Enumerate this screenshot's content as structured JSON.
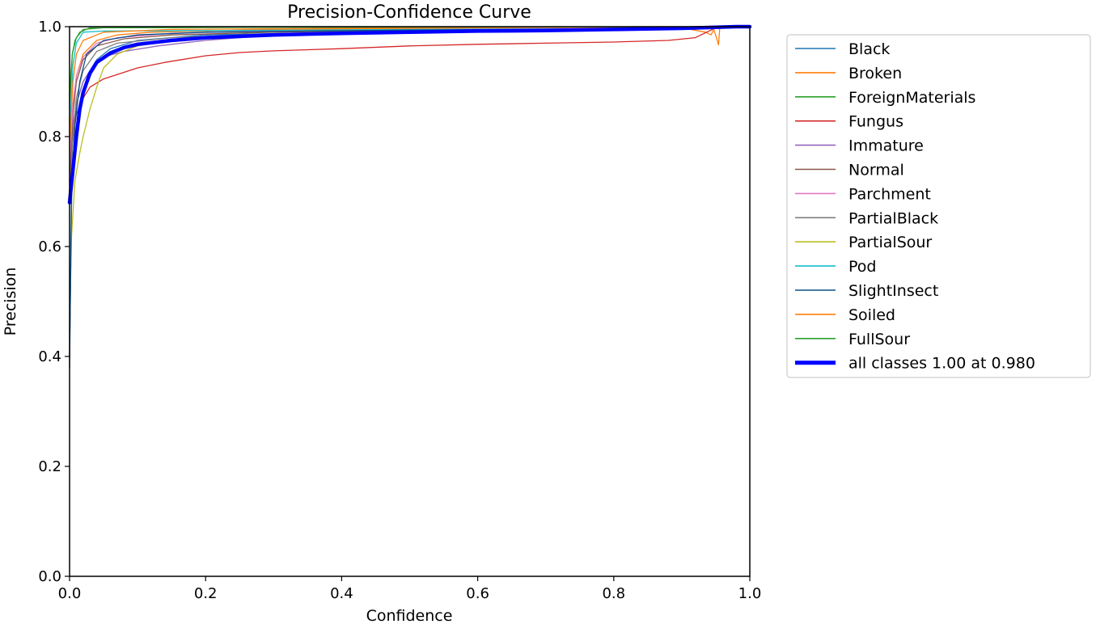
{
  "chart_data": {
    "type": "line",
    "title": "Precision-Confidence Curve",
    "xlabel": "Confidence",
    "ylabel": "Precision",
    "xlim": [
      0,
      1
    ],
    "ylim": [
      0,
      1
    ],
    "xticks": [
      "0.0",
      "0.2",
      "0.4",
      "0.6",
      "0.8",
      "1.0"
    ],
    "yticks": [
      "0.0",
      "0.2",
      "0.4",
      "0.6",
      "0.8",
      "1.0"
    ],
    "grid": false,
    "legend_position": "outside-right",
    "series": [
      {
        "name": "Black",
        "color": "#1f77b4",
        "width": 1.3,
        "points": [
          [
            0,
            0.4
          ],
          [
            0.004,
            0.78
          ],
          [
            0.01,
            0.86
          ],
          [
            0.02,
            0.9
          ],
          [
            0.04,
            0.94
          ],
          [
            0.06,
            0.96
          ],
          [
            0.1,
            0.975
          ],
          [
            0.2,
            0.985
          ],
          [
            0.4,
            0.99
          ],
          [
            0.6,
            0.993
          ],
          [
            0.8,
            0.995
          ],
          [
            0.9,
            0.997
          ],
          [
            1.0,
            1.0
          ]
        ]
      },
      {
        "name": "Broken",
        "color": "#ff7f0e",
        "width": 1.3,
        "points": [
          [
            0,
            0.72
          ],
          [
            0.005,
            0.85
          ],
          [
            0.01,
            0.91
          ],
          [
            0.02,
            0.95
          ],
          [
            0.04,
            0.975
          ],
          [
            0.07,
            0.985
          ],
          [
            0.12,
            0.99
          ],
          [
            0.3,
            0.995
          ],
          [
            0.6,
            0.997
          ],
          [
            0.9,
            0.998
          ],
          [
            0.935,
            0.99
          ],
          [
            0.943,
            0.985
          ],
          [
            0.947,
            0.995
          ],
          [
            0.951,
            0.98
          ],
          [
            0.954,
            0.967
          ],
          [
            0.956,
            1.0
          ],
          [
            1.0,
            1.0
          ]
        ]
      },
      {
        "name": "ForeignMaterials",
        "color": "#2ca02c",
        "width": 1.3,
        "points": [
          [
            0,
            0.88
          ],
          [
            0.004,
            0.95
          ],
          [
            0.01,
            0.98
          ],
          [
            0.02,
            0.995
          ],
          [
            0.05,
            0.998
          ],
          [
            0.3,
            0.999
          ],
          [
            0.6,
            0.999
          ],
          [
            1.0,
            1.0
          ]
        ]
      },
      {
        "name": "Fungus",
        "color": "#d62728",
        "width": 1.3,
        "points": [
          [
            0,
            0.7
          ],
          [
            0.005,
            0.8
          ],
          [
            0.01,
            0.84
          ],
          [
            0.02,
            0.87
          ],
          [
            0.03,
            0.89
          ],
          [
            0.05,
            0.905
          ],
          [
            0.07,
            0.913
          ],
          [
            0.1,
            0.925
          ],
          [
            0.14,
            0.935
          ],
          [
            0.2,
            0.947
          ],
          [
            0.25,
            0.953
          ],
          [
            0.3,
            0.956
          ],
          [
            0.4,
            0.96
          ],
          [
            0.5,
            0.965
          ],
          [
            0.6,
            0.968
          ],
          [
            0.7,
            0.97
          ],
          [
            0.8,
            0.972
          ],
          [
            0.88,
            0.975
          ],
          [
            0.92,
            0.98
          ],
          [
            0.945,
            0.995
          ],
          [
            0.95,
            1.0
          ],
          [
            1.0,
            1.0
          ]
        ]
      },
      {
        "name": "Immature",
        "color": "#9467bd",
        "width": 1.3,
        "points": [
          [
            0,
            0.72
          ],
          [
            0.005,
            0.82
          ],
          [
            0.01,
            0.86
          ],
          [
            0.02,
            0.9
          ],
          [
            0.03,
            0.92
          ],
          [
            0.05,
            0.945
          ],
          [
            0.08,
            0.955
          ],
          [
            0.13,
            0.965
          ],
          [
            0.2,
            0.975
          ],
          [
            0.3,
            0.985
          ],
          [
            0.5,
            0.99
          ],
          [
            0.8,
            0.995
          ],
          [
            1.0,
            1.0
          ]
        ]
      },
      {
        "name": "Normal",
        "color": "#8c564b",
        "width": 1.3,
        "points": [
          [
            0,
            0.7
          ],
          [
            0.005,
            0.84
          ],
          [
            0.01,
            0.9
          ],
          [
            0.02,
            0.94
          ],
          [
            0.04,
            0.965
          ],
          [
            0.08,
            0.978
          ],
          [
            0.15,
            0.985
          ],
          [
            0.3,
            0.99
          ],
          [
            0.6,
            0.995
          ],
          [
            1.0,
            1.0
          ]
        ]
      },
      {
        "name": "Parchment",
        "color": "#e377c2",
        "width": 1.3,
        "points": [
          [
            0,
            0.75
          ],
          [
            0.005,
            0.86
          ],
          [
            0.01,
            0.91
          ],
          [
            0.02,
            0.945
          ],
          [
            0.04,
            0.97
          ],
          [
            0.07,
            0.98
          ],
          [
            0.15,
            0.988
          ],
          [
            0.3,
            0.993
          ],
          [
            0.7,
            0.997
          ],
          [
            1.0,
            1.0
          ]
        ]
      },
      {
        "name": "PartialBlack",
        "color": "#7f7f7f",
        "width": 1.3,
        "points": [
          [
            0,
            0.68
          ],
          [
            0.005,
            0.8
          ],
          [
            0.01,
            0.87
          ],
          [
            0.02,
            0.92
          ],
          [
            0.04,
            0.955
          ],
          [
            0.07,
            0.97
          ],
          [
            0.15,
            0.98
          ],
          [
            0.3,
            0.987
          ],
          [
            0.6,
            0.993
          ],
          [
            1.0,
            1.0
          ]
        ]
      },
      {
        "name": "PartialSour",
        "color": "#bcbd22",
        "width": 1.3,
        "points": [
          [
            0,
            0.45
          ],
          [
            0.003,
            0.62
          ],
          [
            0.008,
            0.72
          ],
          [
            0.015,
            0.77
          ],
          [
            0.02,
            0.8
          ],
          [
            0.03,
            0.85
          ],
          [
            0.04,
            0.89
          ],
          [
            0.05,
            0.925
          ],
          [
            0.07,
            0.95
          ],
          [
            0.1,
            0.965
          ],
          [
            0.15,
            0.975
          ],
          [
            0.25,
            0.983
          ],
          [
            0.5,
            0.99
          ],
          [
            0.8,
            0.995
          ],
          [
            1.0,
            1.0
          ]
        ]
      },
      {
        "name": "Pod",
        "color": "#17becf",
        "width": 1.3,
        "points": [
          [
            0,
            0.8
          ],
          [
            0.005,
            0.93
          ],
          [
            0.01,
            0.97
          ],
          [
            0.02,
            0.99
          ],
          [
            0.05,
            0.992
          ],
          [
            0.2,
            0.993
          ],
          [
            0.5,
            0.995
          ],
          [
            0.9,
            0.997
          ],
          [
            1.0,
            1.0
          ]
        ]
      },
      {
        "name": "SlightInsect",
        "color": "#0b4f8a",
        "width": 1.3,
        "points": [
          [
            0,
            0.38
          ],
          [
            0.003,
            0.7
          ],
          [
            0.008,
            0.82
          ],
          [
            0.015,
            0.9
          ],
          [
            0.025,
            0.95
          ],
          [
            0.05,
            0.975
          ],
          [
            0.1,
            0.985
          ],
          [
            0.2,
            0.99
          ],
          [
            0.5,
            0.994
          ],
          [
            0.9,
            0.997
          ],
          [
            1.0,
            1.0
          ]
        ]
      },
      {
        "name": "Soiled",
        "color": "#ff7f0e",
        "width": 1.3,
        "points": [
          [
            0,
            0.78
          ],
          [
            0.005,
            0.9
          ],
          [
            0.01,
            0.95
          ],
          [
            0.02,
            0.975
          ],
          [
            0.05,
            0.99
          ],
          [
            0.15,
            0.995
          ],
          [
            0.5,
            0.998
          ],
          [
            1.0,
            1.0
          ]
        ]
      },
      {
        "name": "FullSour",
        "color": "#2ca02c",
        "width": 1.3,
        "points": [
          [
            0,
            0.85
          ],
          [
            0.004,
            0.95
          ],
          [
            0.008,
            0.975
          ],
          [
            0.015,
            0.99
          ],
          [
            0.03,
            0.998
          ],
          [
            0.3,
            0.999
          ],
          [
            1.0,
            1.0
          ]
        ]
      },
      {
        "name": "all classes 1.00 at 0.980",
        "color": "#0000ff",
        "width": 4.5,
        "points": [
          [
            0,
            0.68
          ],
          [
            0.005,
            0.74
          ],
          [
            0.01,
            0.8
          ],
          [
            0.015,
            0.85
          ],
          [
            0.02,
            0.88
          ],
          [
            0.03,
            0.915
          ],
          [
            0.04,
            0.935
          ],
          [
            0.06,
            0.952
          ],
          [
            0.08,
            0.962
          ],
          [
            0.1,
            0.968
          ],
          [
            0.15,
            0.975
          ],
          [
            0.2,
            0.98
          ],
          [
            0.3,
            0.985
          ],
          [
            0.4,
            0.988
          ],
          [
            0.5,
            0.99
          ],
          [
            0.6,
            0.992
          ],
          [
            0.7,
            0.993
          ],
          [
            0.8,
            0.995
          ],
          [
            0.9,
            0.997
          ],
          [
            0.98,
            1.0
          ],
          [
            1.0,
            1.0
          ]
        ]
      }
    ]
  }
}
